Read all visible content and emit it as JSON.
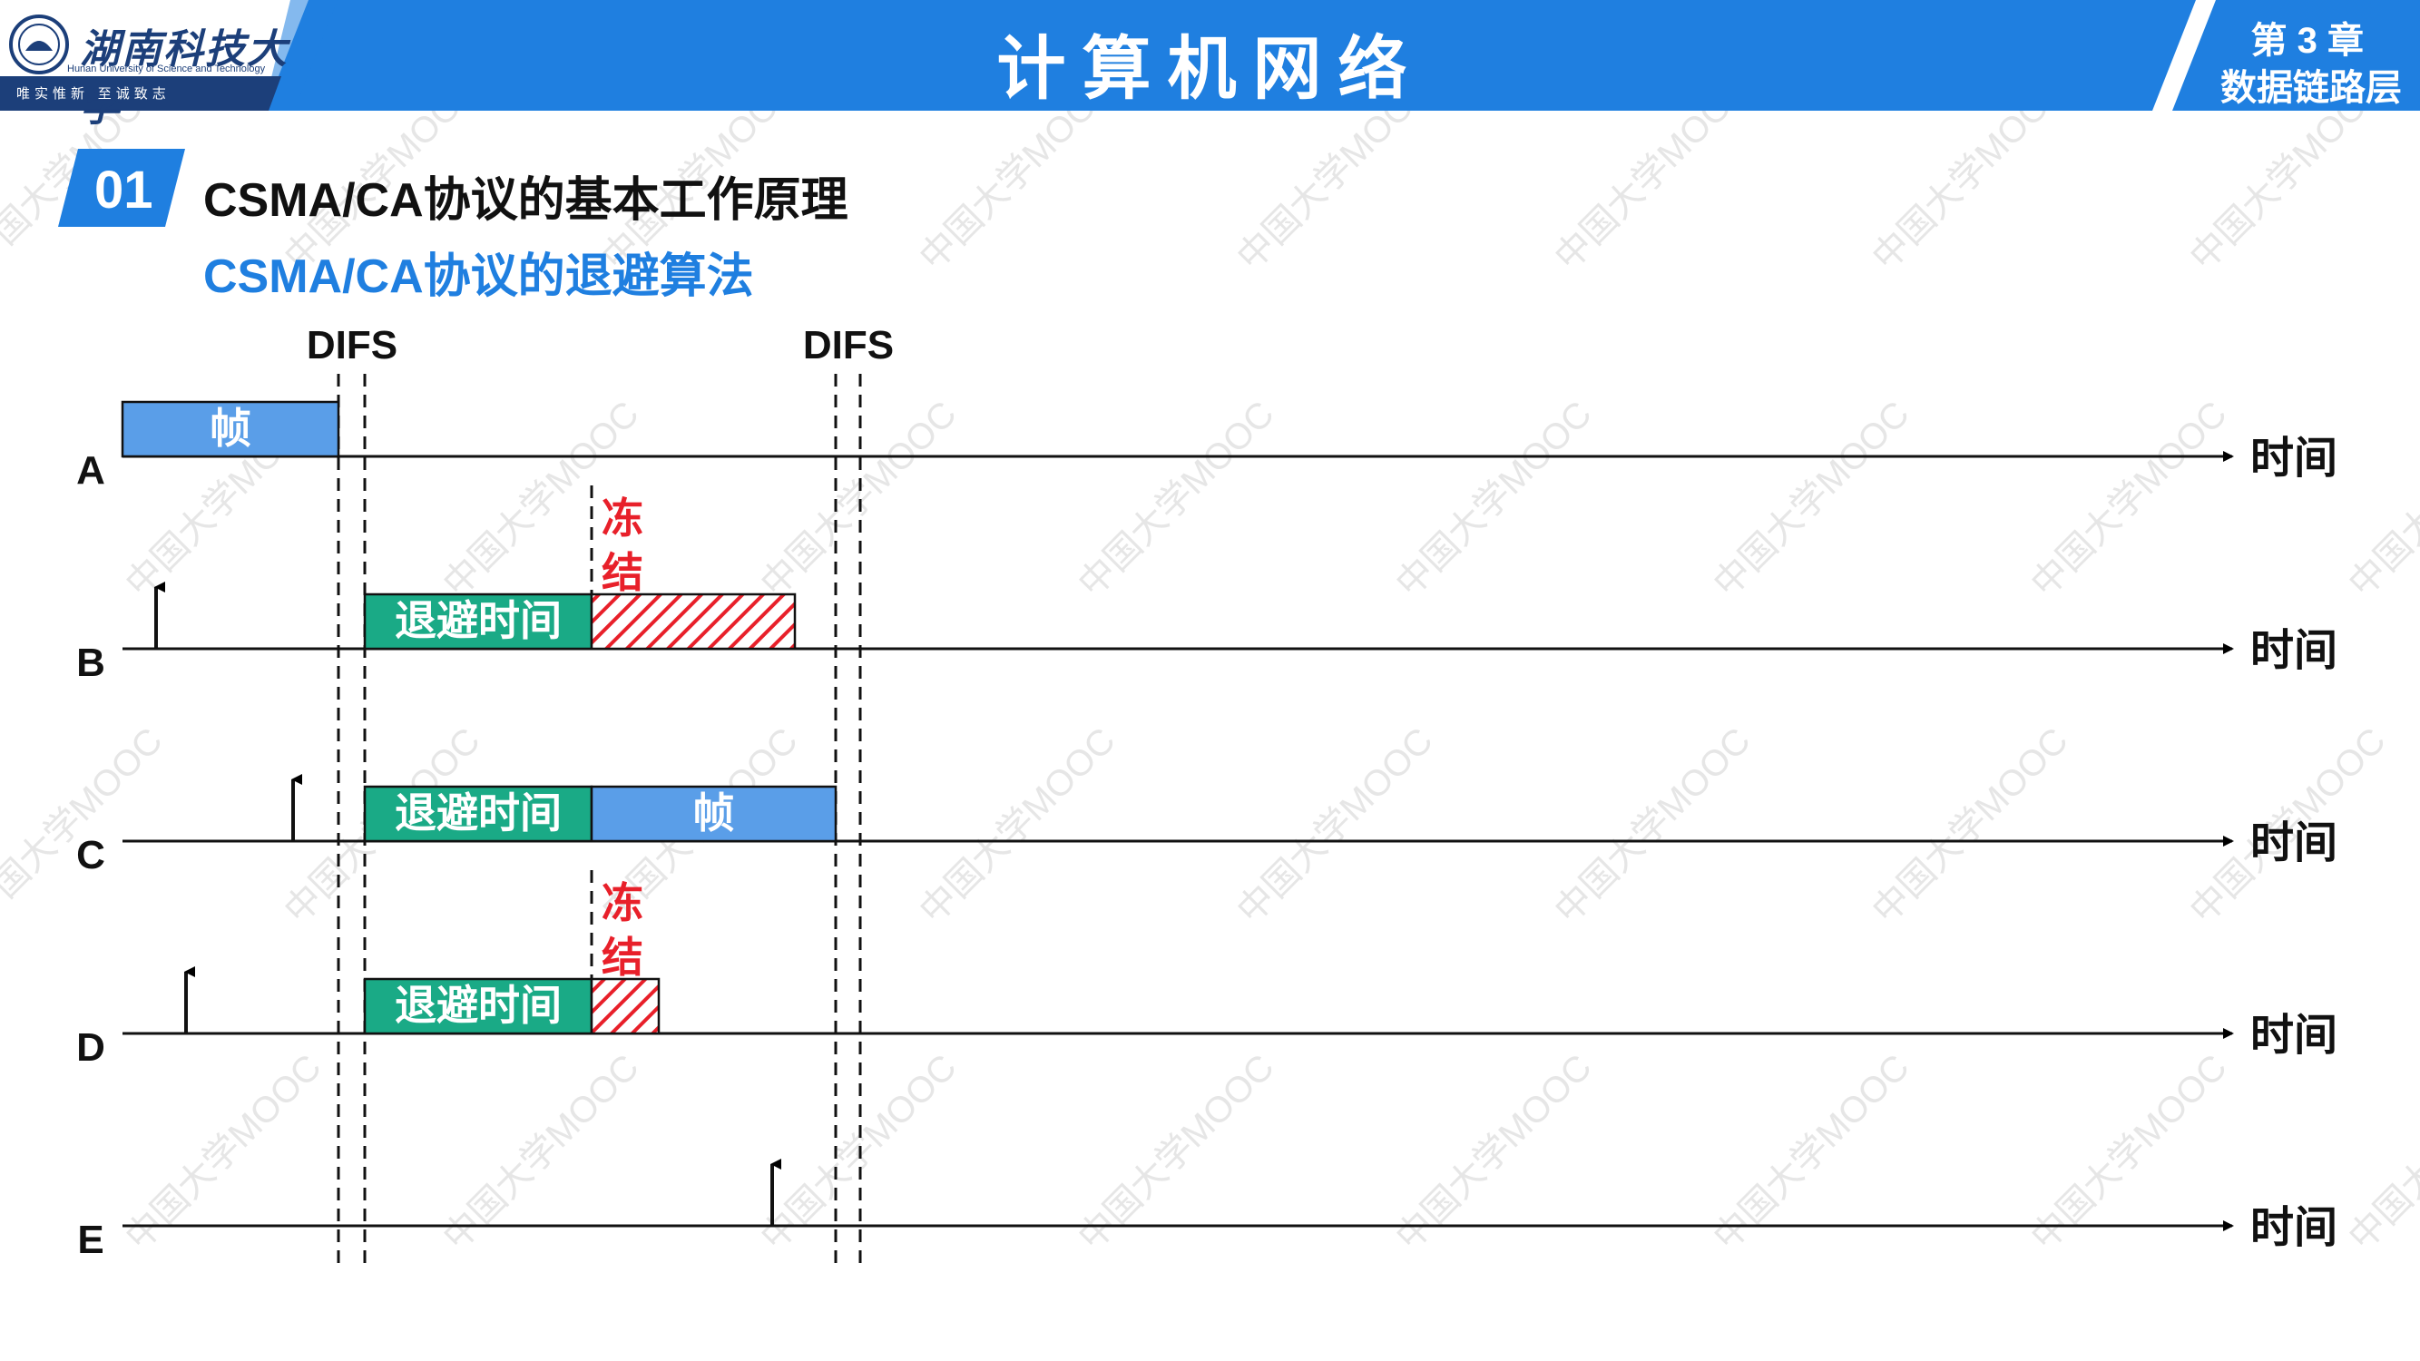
{
  "header": {
    "university_cn": "湖南科技大学",
    "university_en": "Hunan University of Science and Technology",
    "motto": "唯实惟新 至诚致志",
    "course_title": "计算机网络",
    "chapter_number": "第 3 章",
    "chapter_name": "数据链路层"
  },
  "section": {
    "number": "01",
    "title": "CSMA/CA协议的基本工作原理",
    "subtitle": "CSMA/CA协议的退避算法"
  },
  "diagram": {
    "difs_labels": [
      "DIFS",
      "DIFS"
    ],
    "time_label": "时间",
    "stations": [
      {
        "name": "A",
        "blocks": [
          {
            "kind": "frame",
            "label": "帧"
          }
        ]
      },
      {
        "name": "B",
        "blocks": [
          {
            "kind": "backoff",
            "label": "退避时间"
          },
          {
            "kind": "frozen",
            "label": ""
          }
        ],
        "freeze_label": "冻结"
      },
      {
        "name": "C",
        "blocks": [
          {
            "kind": "backoff",
            "label": "退避时间"
          },
          {
            "kind": "frame",
            "label": "帧"
          }
        ]
      },
      {
        "name": "D",
        "blocks": [
          {
            "kind": "backoff",
            "label": "退避时间"
          },
          {
            "kind": "frozen",
            "label": ""
          }
        ],
        "freeze_label": "冻结"
      },
      {
        "name": "E",
        "blocks": []
      }
    ],
    "colors": {
      "frame": "#5a9ee8",
      "backoff": "#1aaa86",
      "frozen": "#e8202a",
      "header": "#1f7fe0"
    }
  },
  "watermark": "中国大学MOOC"
}
